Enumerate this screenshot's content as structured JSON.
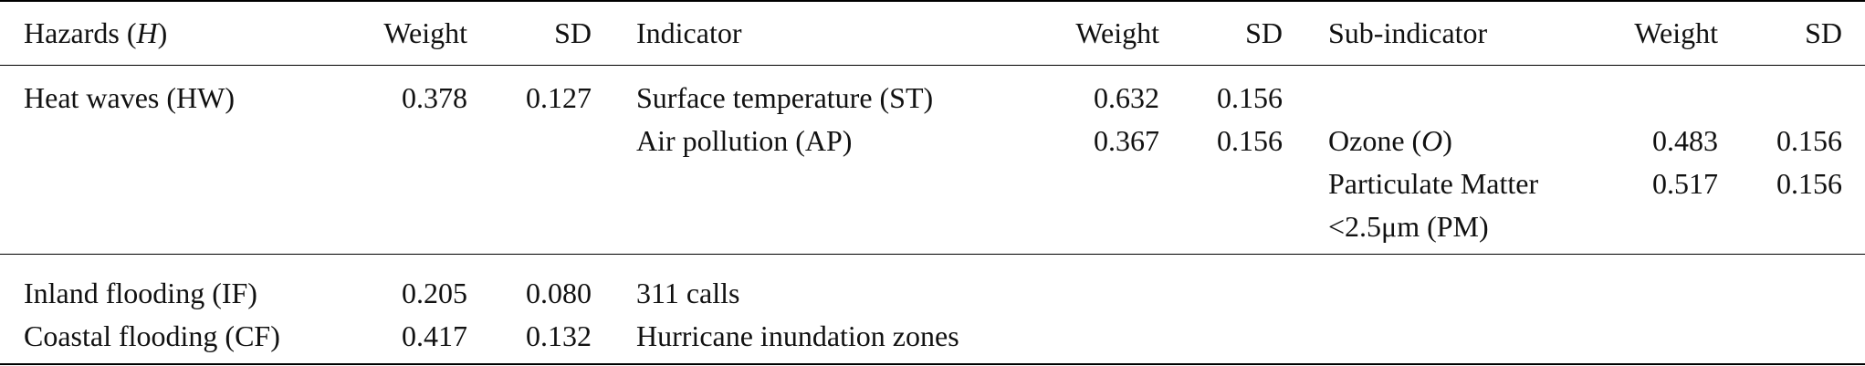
{
  "header": {
    "hazards_prefix": "Hazards (",
    "hazards_symbol": "H",
    "hazards_suffix": ")",
    "weight1": "Weight",
    "sd1": "SD",
    "indicator": "Indicator",
    "weight2": "Weight",
    "sd2": "SD",
    "sub_indicator": "Sub-indicator",
    "weight3": "Weight",
    "sd3": "SD"
  },
  "rows": {
    "heat_waves": {
      "hazard": "Heat waves (HW)",
      "weight": "0.378",
      "sd": "0.127",
      "indicators": [
        {
          "name": "Surface temperature (ST)",
          "weight": "0.632",
          "sd": "0.156"
        },
        {
          "name": "Air pollution (AP)",
          "weight": "0.367",
          "sd": "0.156"
        }
      ],
      "sub_indicators": [
        {
          "name_prefix": "Ozone (",
          "name_symbol": "O",
          "name_suffix": ")",
          "weight": "0.483",
          "sd": "0.156"
        },
        {
          "name_line1": "Particulate Matter",
          "name_line2": "<2.5μm (PM)",
          "weight": "0.517",
          "sd": "0.156"
        }
      ]
    },
    "inland_flooding": {
      "hazard": "Inland flooding (IF)",
      "weight": "0.205",
      "sd": "0.080",
      "indicator": "311 calls"
    },
    "coastal_flooding": {
      "hazard": "Coastal flooding (CF)",
      "weight": "0.417",
      "sd": "0.132",
      "indicator": "Hurricane inundation zones"
    }
  }
}
